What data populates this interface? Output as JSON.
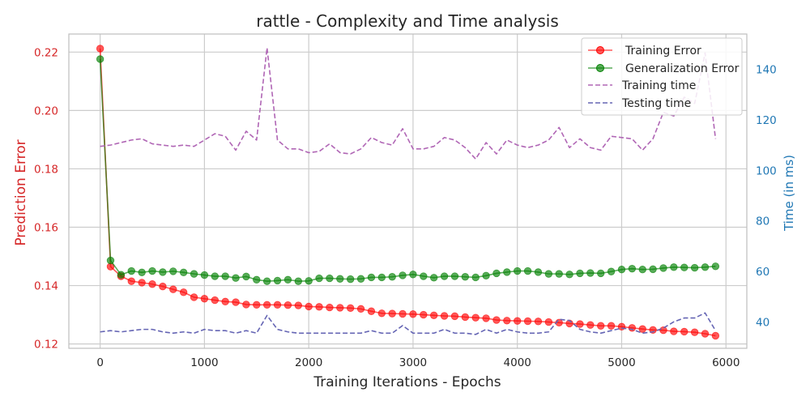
{
  "chart_data": {
    "type": "line",
    "title": "rattle - Complexity and Time analysis",
    "xlabel": "Training Iterations - Epochs",
    "ylabel_left": "Prediction Error",
    "ylabel_right": "Time (in ms)",
    "xlim": [
      -300,
      6200
    ],
    "ylim_left": [
      0.1185,
      0.2262
    ],
    "ylim_right": [
      29.5,
      154
    ],
    "x_ticks": [
      0,
      1000,
      2000,
      3000,
      4000,
      5000,
      6000
    ],
    "y_left_ticks": [
      0.12,
      0.14,
      0.16,
      0.18,
      0.2,
      0.22
    ],
    "y_right_ticks": [
      40,
      60,
      80,
      100,
      120,
      140
    ],
    "grid": true,
    "legend_position": "top-right",
    "colors": {
      "left_axis": "#d62728",
      "right_axis": "#1f77b4",
      "training_error": "#ff0000",
      "generalization_error": "#008000",
      "training_time": "#b066b5",
      "testing_time": "#6565b4",
      "grid": "#cccccc",
      "spine": "#bfbfbf"
    },
    "x": [
      0,
      100,
      200,
      300,
      400,
      500,
      600,
      700,
      800,
      900,
      1000,
      1100,
      1200,
      1300,
      1400,
      1500,
      1600,
      1700,
      1800,
      1900,
      2000,
      2100,
      2200,
      2300,
      2400,
      2500,
      2600,
      2700,
      2800,
      2900,
      3000,
      3100,
      3200,
      3300,
      3400,
      3500,
      3600,
      3700,
      3800,
      3900,
      4000,
      4100,
      4200,
      4300,
      4400,
      4500,
      4600,
      4700,
      4800,
      4900,
      5000,
      5100,
      5200,
      5300,
      5400,
      5500,
      5600,
      5700,
      5800,
      5900
    ],
    "series": [
      {
        "name": "Training Error",
        "axis": "left",
        "style": "line-marker",
        "values": [
          0.2212,
          0.1465,
          0.1432,
          0.1415,
          0.141,
          0.1405,
          0.1397,
          0.1387,
          0.1377,
          0.136,
          0.1355,
          0.135,
          0.1345,
          0.1343,
          0.1335,
          0.1334,
          0.1334,
          0.1334,
          0.1333,
          0.1332,
          0.1328,
          0.1327,
          0.1325,
          0.1324,
          0.1323,
          0.132,
          0.1312,
          0.1305,
          0.1304,
          0.1303,
          0.1302,
          0.13,
          0.1298,
          0.1296,
          0.1295,
          0.1292,
          0.129,
          0.1288,
          0.1282,
          0.128,
          0.1279,
          0.1278,
          0.1277,
          0.1275,
          0.1273,
          0.127,
          0.1268,
          0.1265,
          0.1262,
          0.1262,
          0.1259,
          0.1255,
          0.1251,
          0.1248,
          0.1247,
          0.1243,
          0.1242,
          0.124,
          0.1235,
          0.1228
        ]
      },
      {
        "name": "Generalization Error",
        "axis": "left",
        "style": "line-marker",
        "values": [
          0.2176,
          0.1486,
          0.1437,
          0.145,
          0.1445,
          0.145,
          0.1446,
          0.1449,
          0.1445,
          0.144,
          0.1436,
          0.1432,
          0.1432,
          0.1426,
          0.1431,
          0.142,
          0.1415,
          0.1417,
          0.142,
          0.1415,
          0.1416,
          0.1425,
          0.1425,
          0.1423,
          0.1422,
          0.1423,
          0.1428,
          0.1428,
          0.143,
          0.1435,
          0.1438,
          0.1432,
          0.1427,
          0.1432,
          0.1432,
          0.143,
          0.1428,
          0.1434,
          0.1442,
          0.1446,
          0.145,
          0.145,
          0.1446,
          0.144,
          0.144,
          0.1438,
          0.1442,
          0.1443,
          0.1442,
          0.1448,
          0.1455,
          0.1458,
          0.1455,
          0.1456,
          0.146,
          0.1463,
          0.1462,
          0.1461,
          0.1463,
          0.1466
        ]
      },
      {
        "name": "Training time",
        "axis": "right",
        "style": "dashed",
        "values": [
          109.5,
          110,
          111,
          112,
          112.5,
          110.5,
          110,
          109.5,
          110,
          109.5,
          112,
          114.5,
          113.5,
          108,
          115.5,
          112,
          148.5,
          112,
          108.5,
          108.5,
          107,
          107.5,
          110.5,
          107,
          106.5,
          108.5,
          113,
          111,
          110,
          116.5,
          108.5,
          108.5,
          109.5,
          113,
          112,
          109,
          104.5,
          111,
          106.5,
          112,
          110,
          109,
          110,
          112,
          117,
          109,
          112.5,
          109,
          108,
          113.5,
          113,
          112.5,
          108,
          112.5,
          123,
          121.5,
          129,
          126.5,
          146.5,
          112.5
        ]
      },
      {
        "name": "Testing time",
        "axis": "right",
        "style": "dashed",
        "values": [
          36,
          36.5,
          36,
          36.5,
          37,
          37,
          36,
          35.5,
          36,
          35.5,
          37,
          36.5,
          36.5,
          35.5,
          36.5,
          35.5,
          42.5,
          37,
          36,
          35.5,
          35.5,
          35.5,
          35.5,
          35.5,
          35.5,
          35.5,
          36.5,
          35.5,
          35.5,
          38.5,
          35.5,
          35.5,
          35.5,
          37,
          35.5,
          35.5,
          35,
          37,
          35.5,
          37,
          36,
          35.5,
          35.5,
          36,
          41,
          40.5,
          37,
          36,
          35.5,
          36.5,
          37.5,
          37,
          35.5,
          36,
          37.5,
          40,
          41.5,
          41.5,
          43.5,
          36.5
        ]
      }
    ]
  }
}
